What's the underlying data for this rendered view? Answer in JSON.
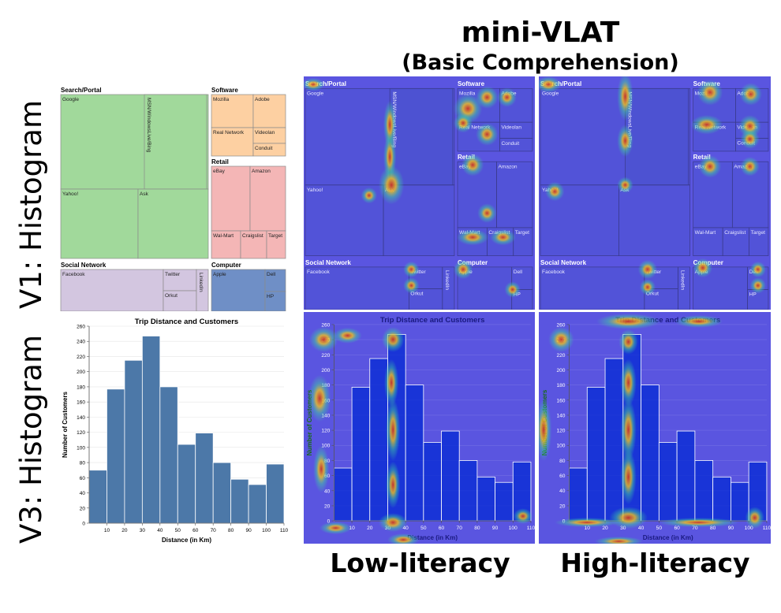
{
  "header": {
    "title": "mini-VLAT",
    "subtitle": "(Basic Comprehension)"
  },
  "row_labels": {
    "v1": "V1: Histogram",
    "v3": "V3: Histogram"
  },
  "column_labels": {
    "low": "Low-literacy",
    "high": "High-literacy"
  },
  "colors": {
    "bar": "#4c78a8",
    "search_portal": "#a1d99b",
    "software": "#fdd0a2",
    "retail": "#f4b6b6",
    "social_network": "#d3c6e0",
    "computer": "#6f8fc6",
    "heatmap_base": "#5a55e0"
  },
  "chart_data": [
    {
      "type": "treemap",
      "groups": [
        {
          "name": "Search/Portal",
          "items": [
            "Google",
            "MSN/WindowsLive/Bing",
            "Yahoo!",
            "Ask"
          ]
        },
        {
          "name": "Software",
          "items": [
            "Mozilla",
            "Adobe",
            "Real Network",
            "Videolan",
            "Conduit"
          ]
        },
        {
          "name": "Retail",
          "items": [
            "eBay",
            "Amazon",
            "Wal-Mart",
            "Craigslist",
            "Target"
          ]
        },
        {
          "name": "Social Network",
          "items": [
            "Facebook",
            "Twitter",
            "Orkut",
            "LinkedIn"
          ]
        },
        {
          "name": "Computer",
          "items": [
            "Apple",
            "Dell",
            "HP"
          ]
        }
      ]
    },
    {
      "type": "bar",
      "title": "Trip Distance and Customers",
      "xlabel": "Distance (in Km)",
      "ylabel": "Number of Customers",
      "x_ticks": [
        "10",
        "20",
        "30",
        "40",
        "50",
        "60",
        "70",
        "80",
        "90",
        "100",
        "110"
      ],
      "y_ticks": [
        "0",
        "20",
        "40",
        "60",
        "80",
        "100",
        "120",
        "140",
        "160",
        "180",
        "200",
        "220",
        "240",
        "260"
      ],
      "bins": [
        [
          0,
          10
        ],
        [
          10,
          20
        ],
        [
          20,
          30
        ],
        [
          30,
          40
        ],
        [
          40,
          50
        ],
        [
          50,
          60
        ],
        [
          60,
          70
        ],
        [
          70,
          80
        ],
        [
          80,
          90
        ],
        [
          90,
          100
        ],
        [
          100,
          110
        ]
      ],
      "values": [
        70,
        177,
        215,
        247,
        180,
        104,
        119,
        80,
        58,
        51,
        78
      ],
      "xlim": [
        0,
        110
      ],
      "ylim": [
        0,
        260
      ],
      "grid": true
    }
  ]
}
